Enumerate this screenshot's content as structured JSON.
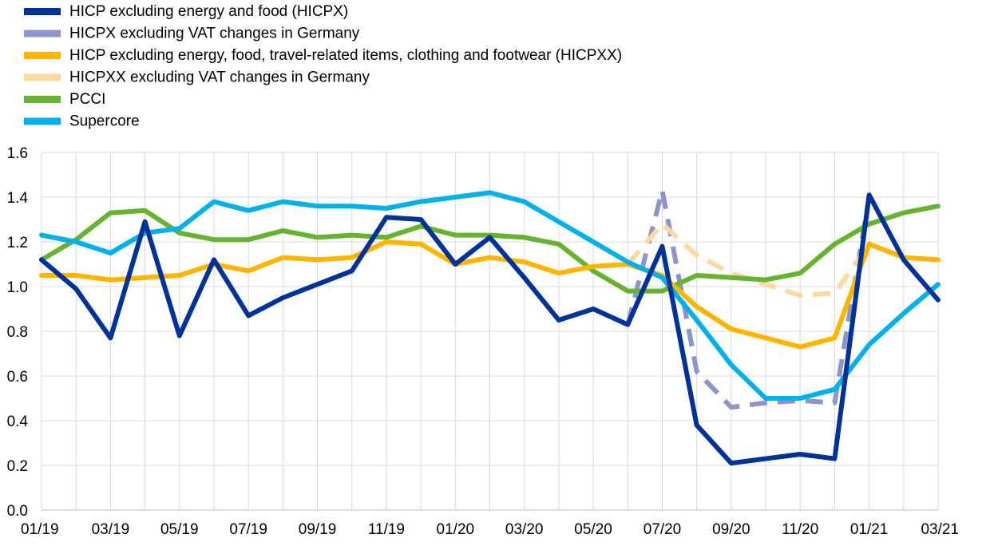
{
  "chart_data": {
    "type": "line",
    "title": "",
    "xlabel": "",
    "ylabel": "",
    "ylim": [
      0.0,
      1.6
    ],
    "y_ticks": [
      "0.0",
      "0.2",
      "0.4",
      "0.6",
      "0.8",
      "1.0",
      "1.2",
      "1.4",
      "1.6"
    ],
    "grid": true,
    "legend_position": "top-left",
    "categories": [
      "01/19",
      "02/19",
      "03/19",
      "04/19",
      "05/19",
      "06/19",
      "07/19",
      "08/19",
      "09/19",
      "10/19",
      "11/19",
      "12/19",
      "01/20",
      "02/20",
      "03/20",
      "04/20",
      "05/20",
      "06/20",
      "07/20",
      "08/20",
      "09/20",
      "10/20",
      "11/20",
      "12/20",
      "01/21",
      "02/21",
      "03/21"
    ],
    "x_tick_labels": [
      "01/19",
      "03/19",
      "05/19",
      "07/19",
      "09/19",
      "11/19",
      "01/20",
      "03/20",
      "05/20",
      "07/20",
      "09/20",
      "11/20",
      "01/21",
      "03/21"
    ],
    "series": [
      {
        "name": "HICPX excluding VAT changes in Germany",
        "color": "#8f95c9",
        "dashed": true,
        "values": [
          null,
          null,
          null,
          null,
          null,
          null,
          null,
          null,
          null,
          null,
          null,
          null,
          null,
          null,
          null,
          null,
          null,
          0.83,
          1.43,
          0.62,
          0.46,
          0.48,
          0.49,
          0.48,
          1.4,
          null,
          null
        ]
      },
      {
        "name": "HICPXX excluding VAT changes in Germany",
        "color": "#fcd9a0",
        "dashed": true,
        "values": [
          null,
          null,
          null,
          null,
          null,
          null,
          null,
          null,
          null,
          null,
          null,
          null,
          null,
          null,
          null,
          null,
          null,
          1.1,
          1.28,
          1.14,
          1.06,
          1.01,
          0.96,
          0.97,
          1.19,
          null,
          null
        ]
      },
      {
        "name": "PCCI",
        "color": "#65b32e",
        "dashed": false,
        "values": [
          1.12,
          1.21,
          1.33,
          1.34,
          1.24,
          1.21,
          1.21,
          1.25,
          1.22,
          1.23,
          1.22,
          1.27,
          1.23,
          1.23,
          1.22,
          1.19,
          1.07,
          0.98,
          0.98,
          1.05,
          1.04,
          1.03,
          1.06,
          1.19,
          1.28,
          1.33,
          1.36
        ]
      },
      {
        "name": "HICP excluding energy, food, travel-related items, clothing and footwear (HICPXX)",
        "color": "#ffb400",
        "dashed": false,
        "values": [
          1.05,
          1.05,
          1.03,
          1.04,
          1.05,
          1.1,
          1.07,
          1.13,
          1.12,
          1.13,
          1.2,
          1.19,
          1.1,
          1.13,
          1.11,
          1.06,
          1.09,
          1.1,
          1.05,
          0.91,
          0.81,
          0.77,
          0.73,
          0.77,
          1.19,
          1.13,
          1.12
        ]
      },
      {
        "name": "Supercore",
        "color": "#00b1ea",
        "dashed": false,
        "values": [
          1.23,
          1.2,
          1.15,
          1.24,
          1.26,
          1.38,
          1.34,
          1.38,
          1.36,
          1.36,
          1.35,
          1.38,
          1.4,
          1.42,
          1.38,
          1.29,
          1.2,
          1.11,
          1.04,
          0.85,
          0.65,
          0.5,
          0.5,
          0.54,
          0.74,
          0.88,
          1.01
        ]
      },
      {
        "name": "HICP excluding energy and food (HICPX)",
        "color": "#003299",
        "dashed": false,
        "values": [
          1.12,
          0.99,
          0.77,
          1.29,
          0.78,
          1.12,
          0.87,
          0.95,
          1.01,
          1.07,
          1.31,
          1.3,
          1.1,
          1.22,
          1.04,
          0.85,
          0.9,
          0.83,
          1.18,
          0.38,
          0.21,
          0.23,
          0.25,
          0.23,
          1.41,
          1.12,
          0.94
        ]
      }
    ],
    "legend": [
      {
        "label": "HICP excluding energy and food (HICPX)",
        "color": "#003299"
      },
      {
        "label": "HICPX excluding VAT changes in Germany",
        "color": "#8f95c9"
      },
      {
        "label": "HICP excluding energy, food, travel-related items, clothing and footwear (HICPXX)",
        "color": "#ffb400"
      },
      {
        "label": "HICPXX excluding VAT changes in Germany",
        "color": "#fcd9a0"
      },
      {
        "label": "PCCI",
        "color": "#65b32e"
      },
      {
        "label": "Supercore",
        "color": "#00b1ea"
      }
    ]
  }
}
